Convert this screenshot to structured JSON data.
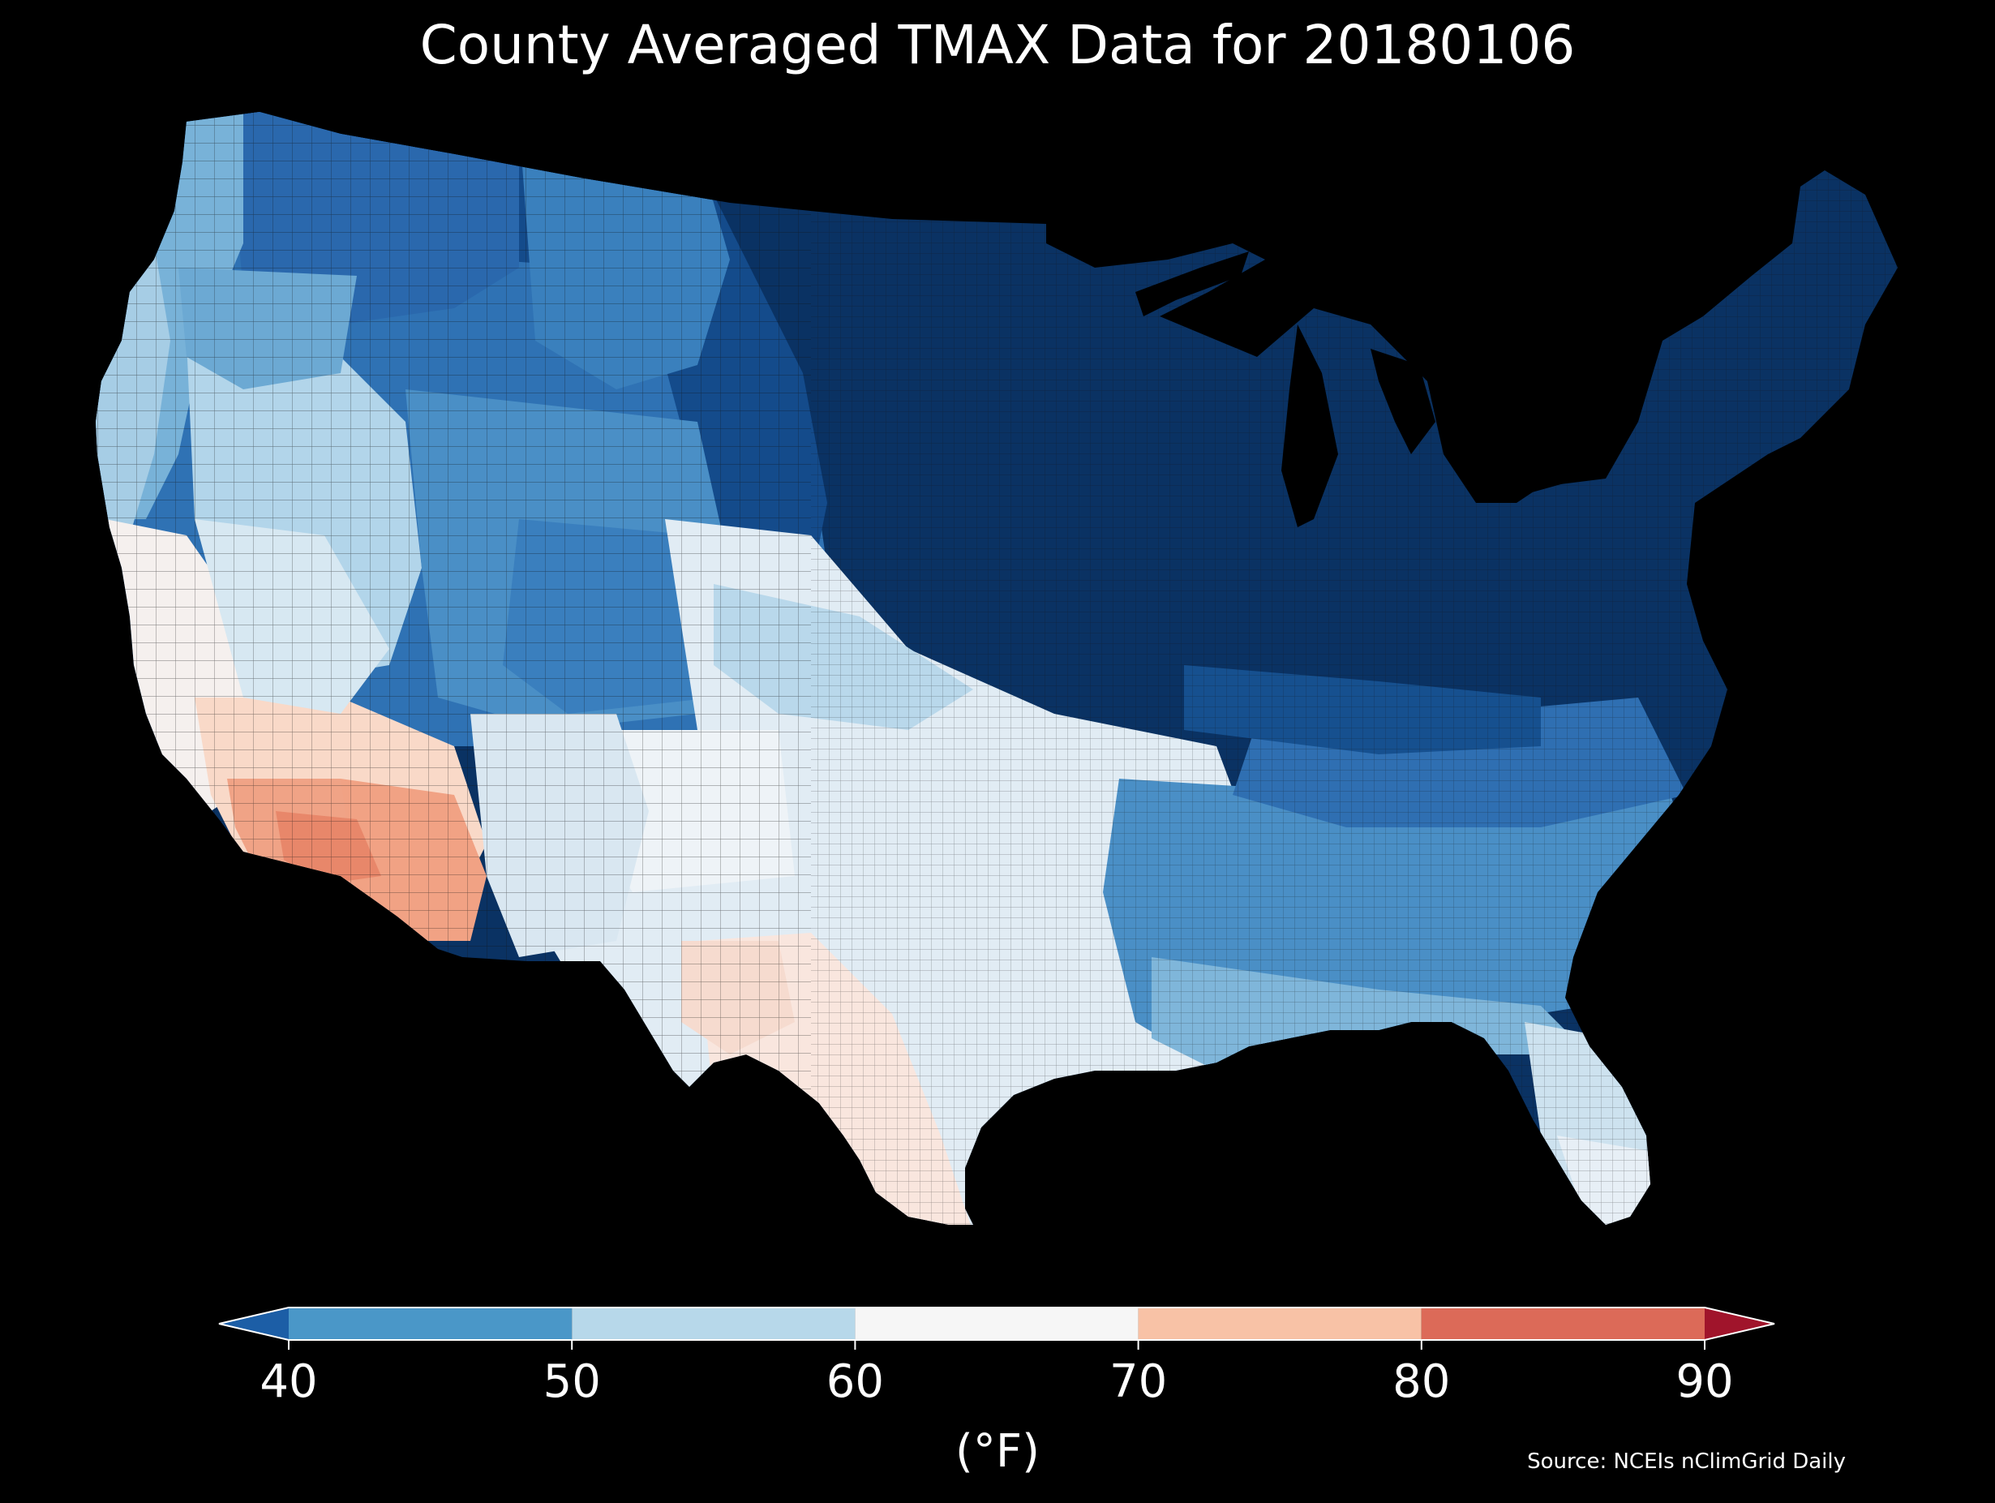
{
  "title": "County Averaged TMAX Data for 20180106",
  "source": "Source: NCEIs nClimGrid Daily",
  "map": {
    "region": "Contiguous United States",
    "unit_of_display": "county",
    "background_color": "#000000",
    "boundary_color": "#1a1a1a",
    "regional_values": [
      {
        "region": "Northeast / New England",
        "tmax": 15
      },
      {
        "region": "Great Lakes / Upper Midwest",
        "tmax": 18
      },
      {
        "region": "Northern Plains",
        "tmax": 22
      },
      {
        "region": "Mid-Atlantic / Ohio Valley",
        "tmax": 28
      },
      {
        "region": "Northern Rockies",
        "tmax": 40
      },
      {
        "region": "Pacific Northwest",
        "tmax": 50
      },
      {
        "region": "Central Rockies",
        "tmax": 46
      },
      {
        "region": "Great Basin",
        "tmax": 54
      },
      {
        "region": "Southeast",
        "tmax": 47
      },
      {
        "region": "Southern Plains",
        "tmax": 62
      },
      {
        "region": "Florida",
        "tmax": 58
      },
      {
        "region": "California",
        "tmax": 66
      },
      {
        "region": "South Texas",
        "tmax": 70
      },
      {
        "region": "Southern California / Arizona desert",
        "tmax": 78
      }
    ]
  },
  "colorbar": {
    "label": "(°F)",
    "ticks": [
      "40",
      "50",
      "60",
      "70",
      "80",
      "90"
    ],
    "bounds": [
      40,
      90
    ],
    "extend": "both",
    "bins": [
      {
        "range": "<40",
        "color": "#1c5ea6"
      },
      {
        "range": "40-50",
        "color": "#4a97c8"
      },
      {
        "range": "50-60",
        "color": "#b7d8ea"
      },
      {
        "range": "60-70",
        "color": "#f6f6f6"
      },
      {
        "range": "70-80",
        "color": "#f8c2a6"
      },
      {
        "range": "80-90",
        "color": "#dc6a58"
      },
      {
        "range": ">90",
        "color": "#a0142b"
      }
    ]
  },
  "colors": {
    "coldest": "#0a3263",
    "very_cold": "#144b8b",
    "cold": "#2f72b4",
    "cool": "#4a97c8",
    "mild_cool": "#87bcdc",
    "mild": "#c8e0ef",
    "neutral": "#eef3f7",
    "warm": "#f9e3d8",
    "hot": "#f3b69a",
    "hottest": "#ee9475"
  }
}
